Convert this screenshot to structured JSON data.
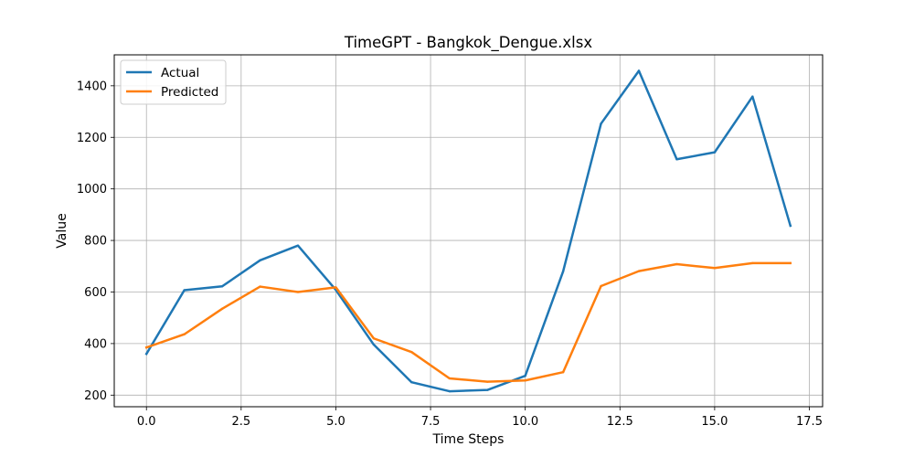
{
  "chart_data": {
    "type": "line",
    "title": "TimeGPT - Bangkok_Dengue.xlsx",
    "xlabel": "Time Steps",
    "ylabel": "Value",
    "xlim": [
      -0.85,
      17.85
    ],
    "ylim": [
      155,
      1520
    ],
    "x_ticks": [
      0.0,
      2.5,
      5.0,
      7.5,
      10.0,
      12.5,
      15.0,
      17.5
    ],
    "x_tick_labels": [
      "0.0",
      "2.5",
      "5.0",
      "7.5",
      "10.0",
      "12.5",
      "15.0",
      "17.5"
    ],
    "y_ticks": [
      200,
      400,
      600,
      800,
      1000,
      1200,
      1400
    ],
    "y_tick_labels": [
      "200",
      "400",
      "600",
      "800",
      "1000",
      "1200",
      "1400"
    ],
    "grid": true,
    "legend_position": "upper-left",
    "x": [
      0,
      1,
      2,
      3,
      4,
      5,
      6,
      7,
      8,
      9,
      10,
      11,
      12,
      13,
      14,
      15,
      16,
      17
    ],
    "series": [
      {
        "name": "Actual",
        "color": "#1f77b4",
        "values": [
          360,
          607,
          622,
          723,
          780,
          608,
          396,
          250,
          215,
          220,
          275,
          680,
          1253,
          1458,
          1115,
          1142,
          1358,
          857
        ]
      },
      {
        "name": "Predicted",
        "color": "#ff7f0e",
        "values": [
          385,
          436,
          535,
          621,
          600,
          618,
          420,
          367,
          265,
          252,
          257,
          289,
          623,
          681,
          708,
          693,
          712,
          712
        ]
      }
    ]
  }
}
